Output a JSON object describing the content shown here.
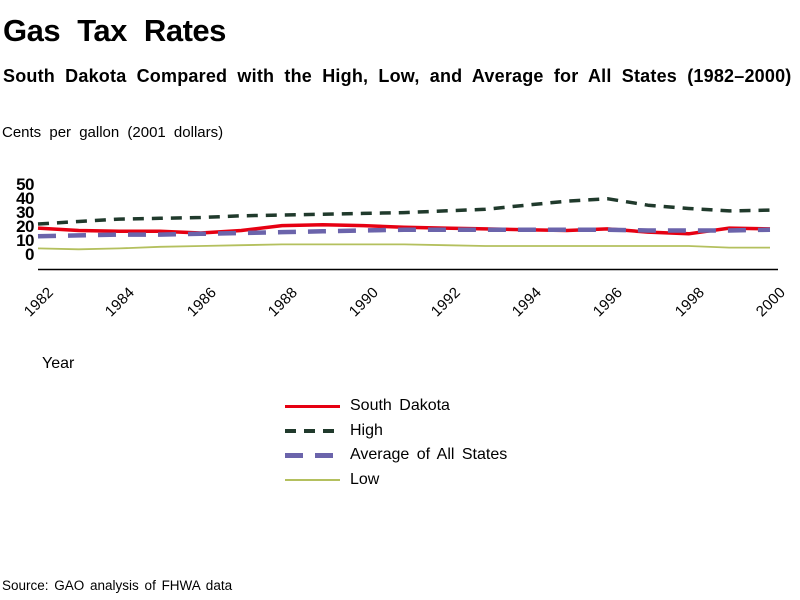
{
  "page": {
    "title": "Gas Tax Rates",
    "subtitle": "South Dakota Compared with the High, Low, and Average for All States (1982–2000)",
    "axis_note": "Cents per gallon (2001 dollars)",
    "x_axis_label": "Year",
    "source": "Source: GAO analysis of FHWA data"
  },
  "chart_data": {
    "type": "line",
    "title": "Gas Tax Rates",
    "subtitle": "South Dakota Compared with the High, Low, and Average for All States (1982–2000)",
    "ylabel": "Cents per gallon (2001 dollars)",
    "xlabel": "Year",
    "ylim": [
      0,
      50
    ],
    "grid": false,
    "legend_position": "bottom-center",
    "axis_color": "#000000",
    "y_ticks": [
      50,
      40,
      30,
      20,
      10,
      0
    ],
    "x_ticks": [
      1982,
      1984,
      1986,
      1988,
      1990,
      1992,
      1994,
      1996,
      1998,
      2000
    ],
    "x": [
      1982,
      1983,
      1984,
      1985,
      1986,
      1987,
      1988,
      1989,
      1990,
      1991,
      1992,
      1993,
      1994,
      1995,
      1996,
      1997,
      1998,
      1999,
      2000
    ],
    "series": [
      {
        "name": "South Dakota",
        "color": "#e60012",
        "style": "solid",
        "line_width": 3.5,
        "values": [
          24.5,
          23,
          22.5,
          22.5,
          21.5,
          23,
          26,
          26.5,
          26,
          25,
          24.5,
          24,
          23.5,
          23,
          24,
          22,
          21,
          24.5,
          24
        ]
      },
      {
        "name": "High",
        "color": "#203a2c",
        "style": "dashed",
        "dash": "11 8",
        "line_width": 3.5,
        "values": [
          27,
          28.5,
          30,
          30.5,
          31,
          32,
          32.5,
          33,
          33.5,
          34,
          35,
          36,
          38.5,
          41,
          42.5,
          38.5,
          36.5,
          35,
          35.5
        ]
      },
      {
        "name": "Average of All States",
        "color": "#6b64ab",
        "style": "dashed",
        "dash": "18 12",
        "line_width": 4.5,
        "values": [
          19.5,
          20,
          20.5,
          20.5,
          21,
          21.5,
          22,
          22.5,
          23,
          23.5,
          23.5,
          23.5,
          23.5,
          23.5,
          23.5,
          23,
          23,
          23,
          23.5
        ]
      },
      {
        "name": "Low",
        "color": "#b4c05e",
        "style": "solid",
        "line_width": 1.8,
        "values": [
          12,
          11.5,
          12,
          13,
          13.5,
          14,
          14.5,
          14.5,
          14.5,
          14.5,
          14,
          13.5,
          13.5,
          13.5,
          13.5,
          13.5,
          13.5,
          12.5,
          12.5
        ]
      }
    ]
  }
}
